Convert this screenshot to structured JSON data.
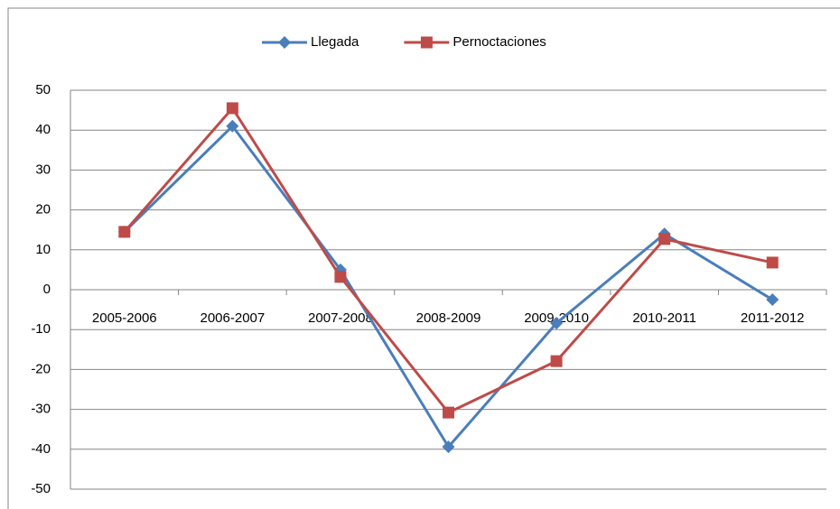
{
  "chart_data": {
    "type": "line",
    "categories": [
      "2005-2006",
      "2006-2007",
      "2007-2008",
      "2008-2009",
      "2009-2010",
      "2010-2011",
      "2011-2012"
    ],
    "series": [
      {
        "name": "Llegada",
        "color": "#4a7ebb",
        "marker": "diamond",
        "values": [
          14.5,
          41,
          5,
          -39.4,
          -8.4,
          14,
          -2.5
        ]
      },
      {
        "name": "Pernoctaciones",
        "color": "#be4b48",
        "marker": "square",
        "values": [
          14.5,
          45.5,
          3.2,
          -30.8,
          -17.9,
          12.7,
          6.8
        ]
      }
    ],
    "ylim": [
      -50,
      50
    ],
    "yticks": [
      -50,
      -40,
      -30,
      -20,
      -10,
      0,
      10,
      20,
      30,
      40,
      50
    ],
    "grid": true,
    "legend": "top"
  }
}
